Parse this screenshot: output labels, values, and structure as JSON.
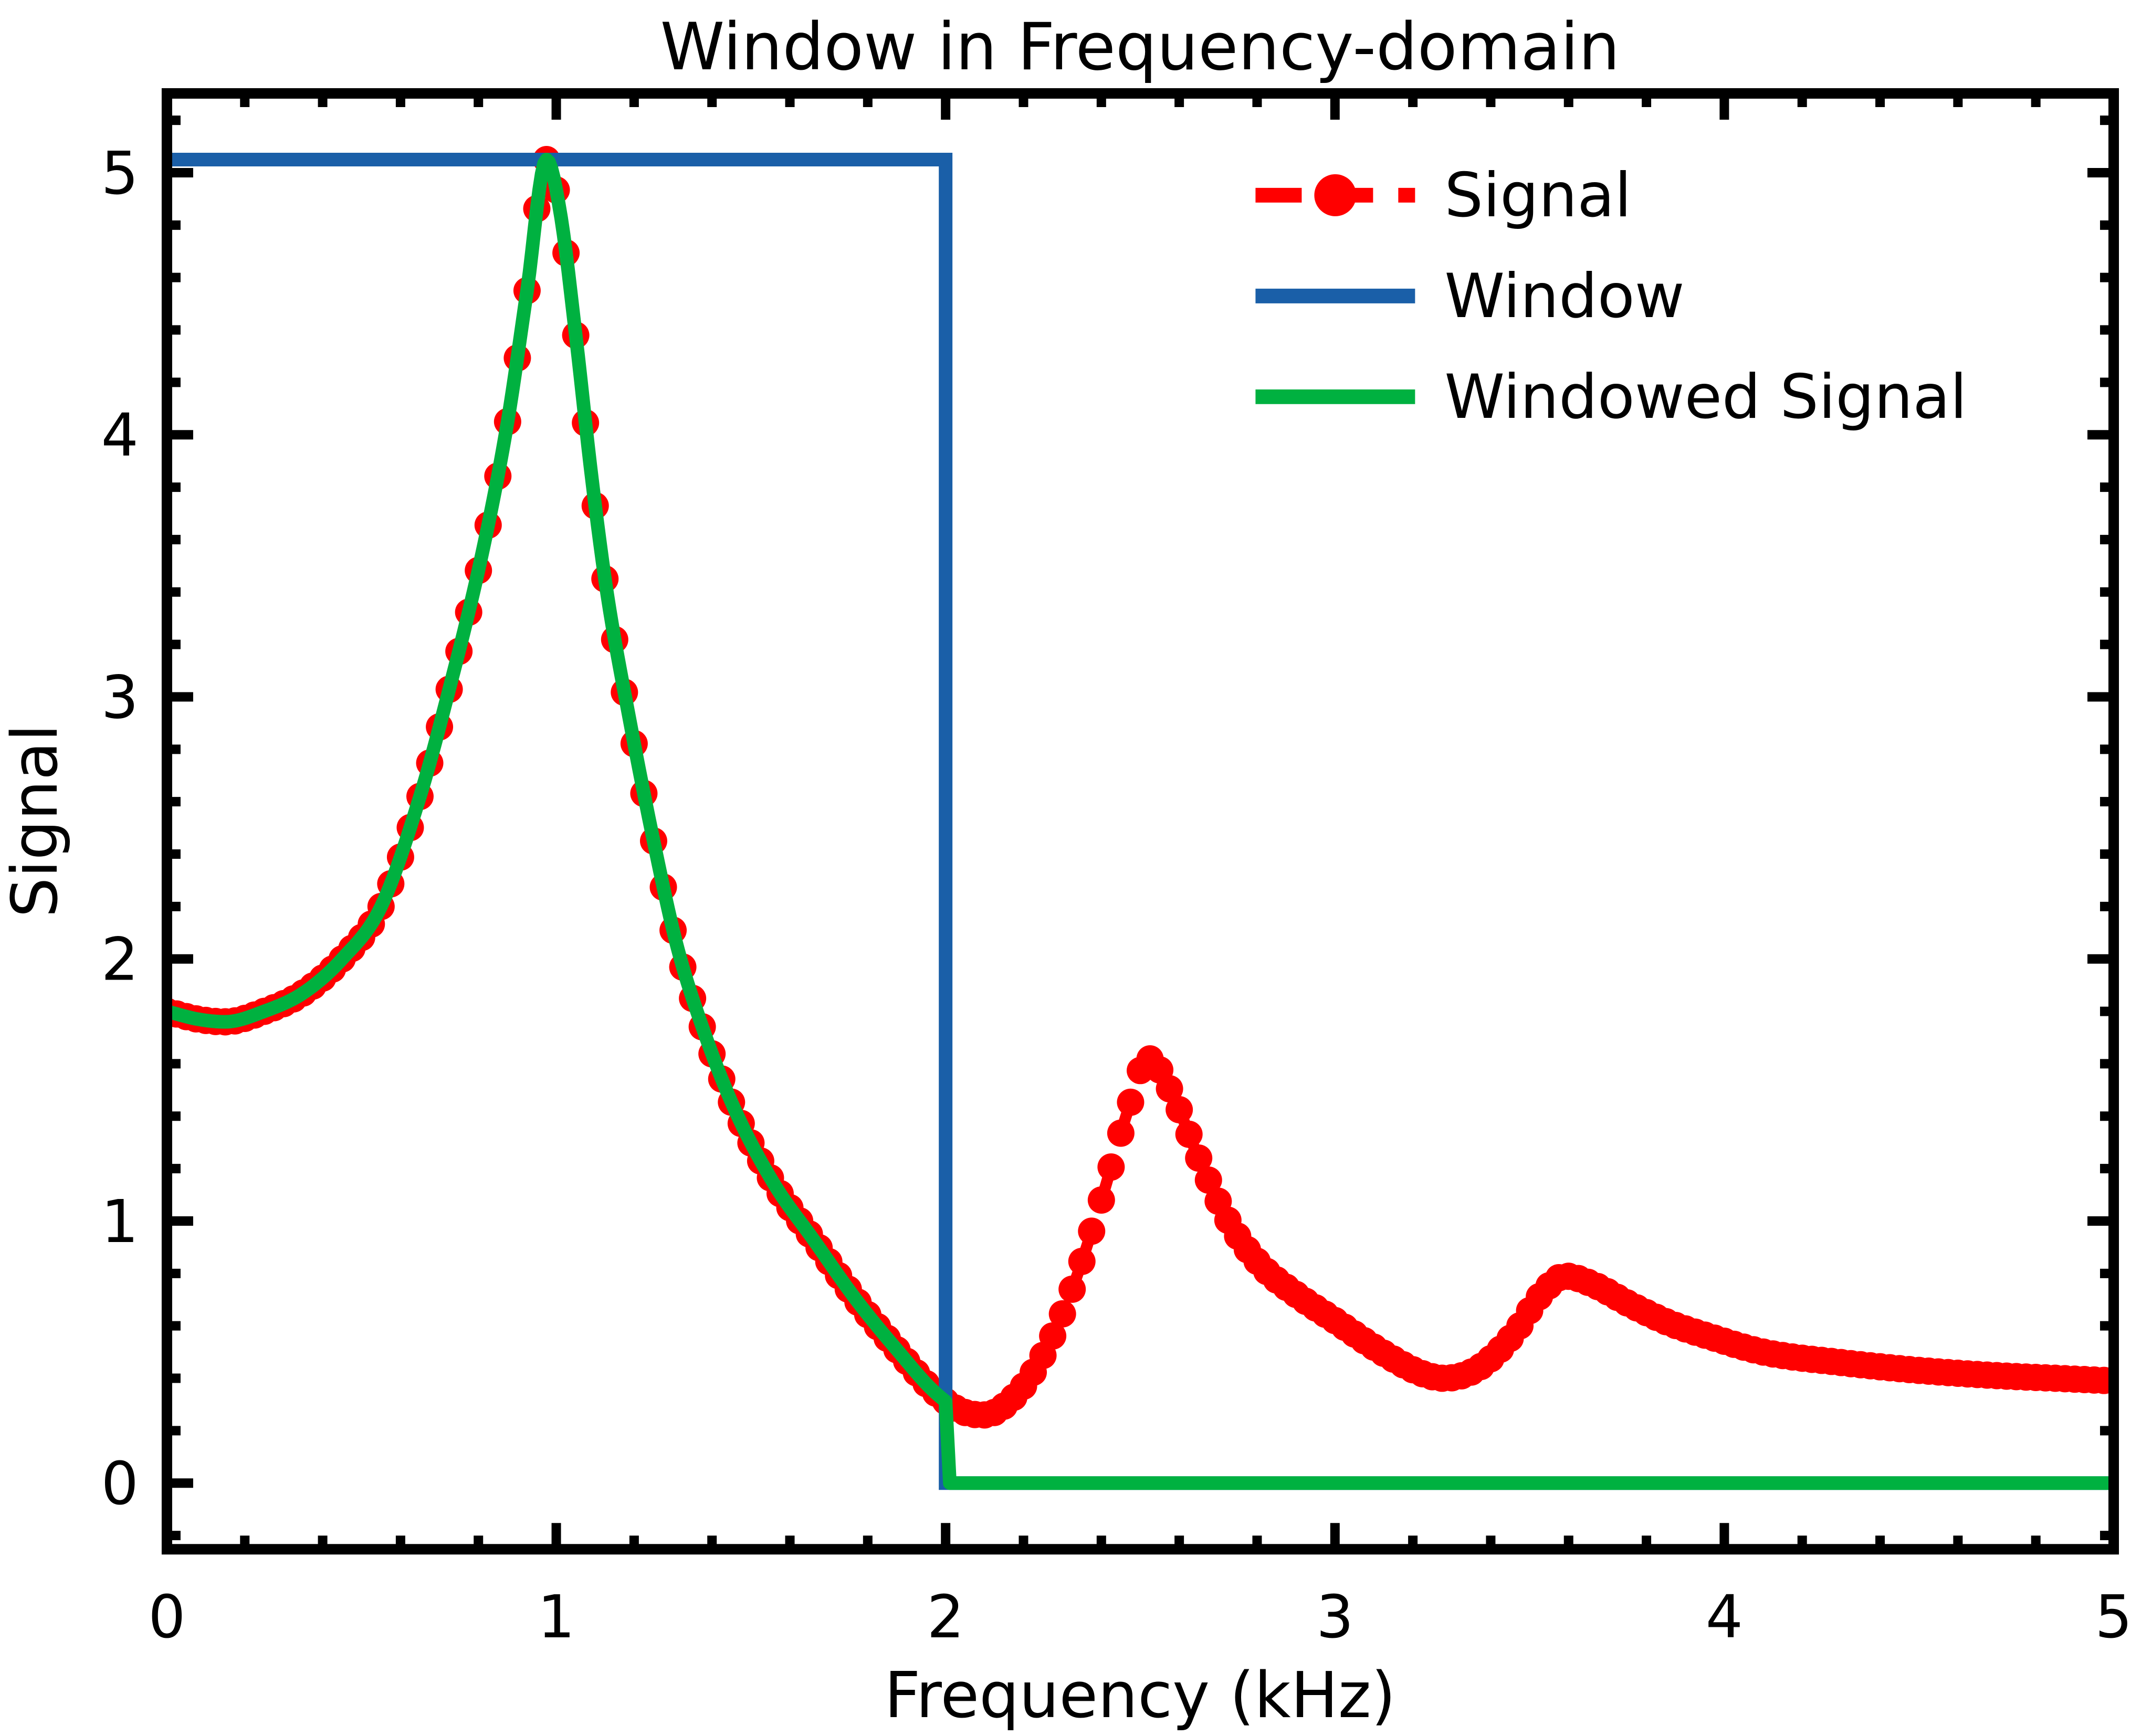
{
  "title": "Window in Frequency-domain",
  "axes": {
    "xlabel": "Frequency (kHz)",
    "ylabel": "Signal",
    "xlim": [
      0,
      5
    ],
    "ylim": [
      -0.2525,
      5.3025
    ],
    "x_tick_labels": [
      "0",
      "1",
      "2",
      "3",
      "4",
      "5"
    ],
    "y_tick_labels": [
      "0",
      "1",
      "2",
      "3",
      "4",
      "5"
    ],
    "major_tick_values": [
      0,
      1,
      2,
      3,
      4,
      5
    ],
    "minor_tick_step": 0.2,
    "ticks_direction": "in",
    "ticks_on_all_sides": true
  },
  "legend": {
    "location": "upper right",
    "frame": false,
    "entries": [
      "Signal",
      "Window",
      "Windowed Signal"
    ]
  },
  "colors": {
    "signal": "#ff0000",
    "window": "#1a5fa8",
    "windowed_signal": "#00b140",
    "axes": "#000000",
    "background": "#ffffff"
  },
  "chart_data": {
    "type": "line",
    "title": "Window in Frequency-domain",
    "xlabel": "Frequency (kHz)",
    "ylabel": "Signal",
    "xlim": [
      0,
      5
    ],
    "ylim": [
      -0.2525,
      5.3025
    ],
    "series": [
      {
        "name": "Signal",
        "color": "#ff0000",
        "linestyle": "dashed",
        "marker": "circle",
        "marker_step": 0.025,
        "points": [
          [
            0.0,
            1.8
          ],
          [
            0.08,
            1.77
          ],
          [
            0.15,
            1.76
          ],
          [
            0.25,
            1.8
          ],
          [
            0.35,
            1.87
          ],
          [
            0.45,
            2.0
          ],
          [
            0.55,
            2.2
          ],
          [
            0.65,
            2.62
          ],
          [
            0.72,
            3.0
          ],
          [
            0.81,
            3.55
          ],
          [
            0.875,
            4.05
          ],
          [
            0.925,
            4.55
          ],
          [
            0.975,
            5.05
          ],
          [
            1.01,
            4.85
          ],
          [
            1.05,
            4.38
          ],
          [
            1.09,
            3.85
          ],
          [
            1.13,
            3.4
          ],
          [
            1.19,
            2.9
          ],
          [
            1.25,
            2.45
          ],
          [
            1.31,
            2.05
          ],
          [
            1.38,
            1.72
          ],
          [
            1.46,
            1.42
          ],
          [
            1.56,
            1.14
          ],
          [
            1.66,
            0.93
          ],
          [
            1.77,
            0.7
          ],
          [
            1.88,
            0.5
          ],
          [
            1.97,
            0.35
          ],
          [
            2.04,
            0.275
          ],
          [
            2.1,
            0.26
          ],
          [
            2.17,
            0.32
          ],
          [
            2.24,
            0.46
          ],
          [
            2.32,
            0.72
          ],
          [
            2.4,
            1.08
          ],
          [
            2.47,
            1.43
          ],
          [
            2.52,
            1.62
          ],
          [
            2.58,
            1.49
          ],
          [
            2.65,
            1.24
          ],
          [
            2.73,
            0.99
          ],
          [
            2.81,
            0.83
          ],
          [
            2.9,
            0.72
          ],
          [
            3.0,
            0.62
          ],
          [
            3.12,
            0.5
          ],
          [
            3.22,
            0.42
          ],
          [
            3.28,
            0.4
          ],
          [
            3.37,
            0.44
          ],
          [
            3.46,
            0.57
          ],
          [
            3.53,
            0.72
          ],
          [
            3.59,
            0.79
          ],
          [
            3.66,
            0.76
          ],
          [
            3.76,
            0.68
          ],
          [
            3.86,
            0.61
          ],
          [
            3.96,
            0.56
          ],
          [
            4.1,
            0.5
          ],
          [
            4.3,
            0.46
          ],
          [
            4.5,
            0.43
          ],
          [
            4.7,
            0.41
          ],
          [
            4.85,
            0.4
          ],
          [
            5.0,
            0.39
          ]
        ]
      },
      {
        "name": "Window",
        "color": "#1a5fa8",
        "linestyle": "solid",
        "points": [
          [
            0,
            5.05
          ],
          [
            2,
            5.05
          ],
          [
            2,
            0
          ],
          [
            5,
            0
          ]
        ]
      },
      {
        "name": "Windowed Signal",
        "color": "#00b140",
        "linestyle": "solid",
        "derivation": "equals Signal for 0 <= x <= 2 kHz, 0 for x > 2 kHz",
        "cutoff": 2.0
      }
    ],
    "annotations": {
      "signal_peaks": [
        [
          0.975,
          5.05
        ],
        [
          2.52,
          1.62
        ],
        [
          3.59,
          0.79
        ]
      ],
      "signal_troughs": [
        [
          2.1,
          0.26
        ],
        [
          3.28,
          0.4
        ]
      ],
      "window_level": 5.05,
      "window_cutoff": 2.0
    }
  }
}
